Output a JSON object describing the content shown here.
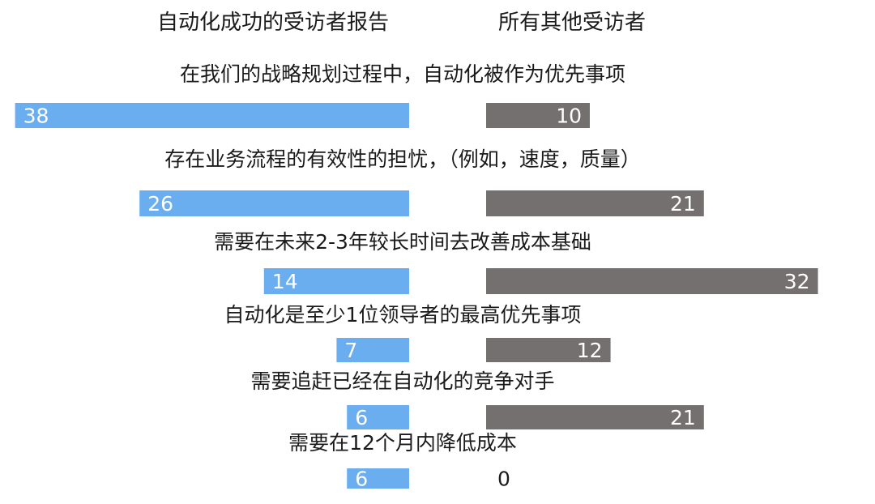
{
  "chart_data": {
    "type": "bar",
    "orientation": "horizontal-diverging",
    "legend": {
      "left": "自动化成功的受访者报告",
      "right": "所有其他受访者"
    },
    "categories": [
      "在我们的战略规划过程中，自动化被作为优先事项",
      "存在业务流程的有效性的担忧，（例如，速度，质量）",
      "需要在未来2-3年较长时间去改善成本基础",
      "自动化是至少1位领导者的最高优先事项",
      "需要追赶已经在自动化的竞争对手",
      "需要在12个月内降低成本"
    ],
    "series": [
      {
        "name": "自动化成功的受访者报告",
        "values": [
          38,
          26,
          14,
          7,
          6,
          6
        ],
        "color": "#6aaef0"
      },
      {
        "name": "所有其他受访者",
        "values": [
          10,
          21,
          32,
          12,
          21,
          0
        ],
        "color": "#747070"
      }
    ],
    "grid": false
  }
}
